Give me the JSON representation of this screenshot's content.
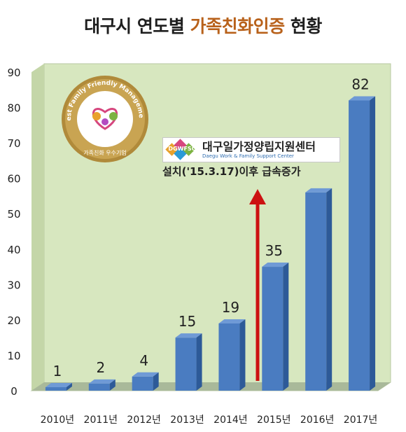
{
  "title": {
    "prefix": "대구시 연도별 ",
    "highlight": "가족친화인증",
    "suffix": " 현황"
  },
  "seal": {
    "arc_text": "Best Family Friendly Management",
    "bottom_text": "가족친화 우수기업"
  },
  "center": {
    "logo_text": "DGWFSC",
    "name": "대구일가정양립지원센터",
    "name_en": "Daegu Work & Family Support Center"
  },
  "annotation": "설치('15.3.17)이후 급속증가",
  "colors": {
    "plot_bg": "#d7e7bf",
    "bar": "#4a7cc1",
    "bar_top": "#6f9ad6",
    "bar_side": "#2d5a98",
    "arrow": "#cc1111",
    "title_highlight": "#b8611a"
  },
  "chart_data": {
    "type": "bar",
    "categories": [
      "2010년",
      "2011년",
      "2012년",
      "2013년",
      "2014년",
      "2015년",
      "2016년",
      "2017년"
    ],
    "values": [
      1,
      2,
      4,
      15,
      19,
      35,
      56,
      82
    ],
    "data_labels": [
      "1",
      "2",
      "4",
      "15",
      "19",
      "35",
      "",
      "82"
    ],
    "ylim": [
      0,
      90
    ],
    "yticks": [
      0,
      10,
      20,
      30,
      40,
      50,
      60,
      70,
      80,
      90
    ],
    "grid": false,
    "style": "3d"
  }
}
